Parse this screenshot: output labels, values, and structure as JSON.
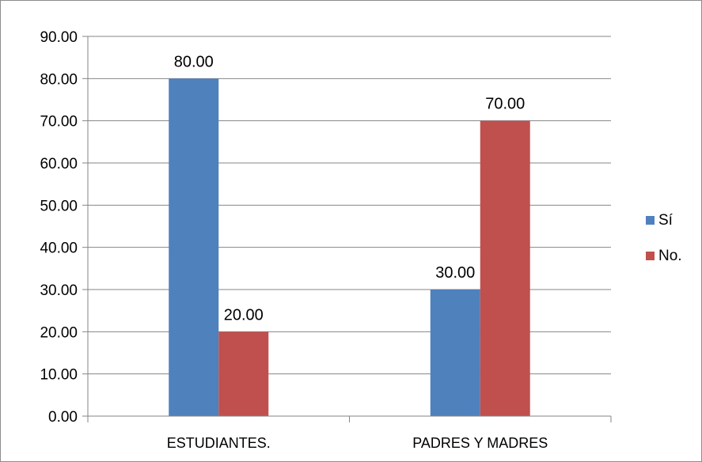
{
  "chart_data": {
    "type": "bar",
    "categories": [
      "ESTUDIANTES.",
      "PADRES Y MADRES"
    ],
    "series": [
      {
        "name": "Sí",
        "values": [
          80.0,
          30.0
        ],
        "color": "#4f81bd"
      },
      {
        "name": "No.",
        "values": [
          20.0,
          70.0
        ],
        "color": "#c0504d"
      }
    ],
    "title": "",
    "xlabel": "",
    "ylabel": "",
    "ylim": [
      0,
      90
    ],
    "yticks": [
      "0.00",
      "10.00",
      "20.00",
      "30.00",
      "40.00",
      "50.00",
      "60.00",
      "70.00",
      "80.00",
      "90.00"
    ],
    "data_labels": [
      [
        "80.00",
        "30.00"
      ],
      [
        "20.00",
        "70.00"
      ]
    ],
    "grid": true,
    "legend_position": "right",
    "gridline_color": "#868686"
  }
}
